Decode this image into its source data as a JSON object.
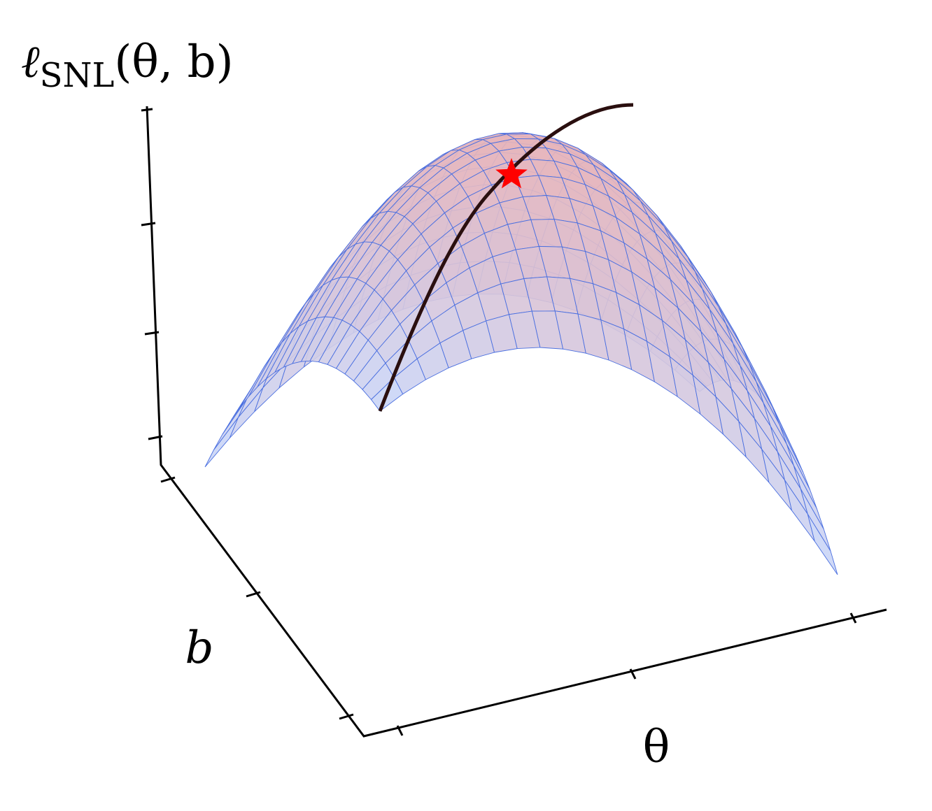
{
  "axes": {
    "z_label": {
      "symbol": "ℓ",
      "subscript": "SNL",
      "args": "(θ, b)"
    },
    "x_label": "θ",
    "y_label": "b"
  }
}
